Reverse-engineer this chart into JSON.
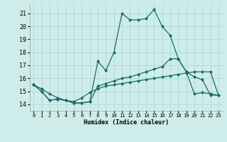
{
  "xlabel": "Humidex (Indice chaleur)",
  "bg_color": "#ceecea",
  "grid_color": "#aed8d4",
  "line_color": "#1a6b6b",
  "xlim": [
    -0.5,
    23.5
  ],
  "ylim": [
    13.5,
    21.7
  ],
  "yticks": [
    14,
    15,
    16,
    17,
    18,
    19,
    20,
    21
  ],
  "xticks": [
    0,
    1,
    2,
    3,
    4,
    5,
    6,
    7,
    8,
    9,
    10,
    11,
    12,
    13,
    14,
    15,
    16,
    17,
    18,
    19,
    20,
    21,
    22,
    23
  ],
  "series1_x": [
    0,
    1,
    2,
    3,
    4,
    5,
    6,
    7,
    8,
    9,
    10,
    11,
    12,
    13,
    14,
    15,
    16,
    17,
    18,
    19,
    20,
    21,
    22,
    23
  ],
  "series1_y": [
    15.5,
    15.0,
    14.3,
    14.4,
    14.3,
    14.1,
    14.1,
    14.2,
    17.3,
    16.6,
    18.0,
    21.0,
    20.5,
    20.5,
    20.6,
    21.3,
    20.0,
    19.3,
    17.5,
    16.5,
    16.1,
    15.9,
    14.7,
    14.7
  ],
  "series2_x": [
    0,
    1,
    2,
    3,
    4,
    5,
    6,
    7,
    8,
    9,
    10,
    11,
    12,
    13,
    14,
    15,
    16,
    17,
    18,
    19,
    20,
    21,
    22,
    23
  ],
  "series2_y": [
    15.5,
    15.0,
    14.3,
    14.4,
    14.3,
    14.1,
    14.1,
    14.2,
    15.4,
    15.6,
    15.8,
    16.0,
    16.1,
    16.3,
    16.5,
    16.7,
    16.9,
    17.5,
    17.5,
    16.5,
    14.8,
    14.9,
    14.8,
    14.7
  ],
  "series3_x": [
    0,
    1,
    2,
    3,
    4,
    5,
    6,
    7,
    8,
    9,
    10,
    11,
    12,
    13,
    14,
    15,
    16,
    17,
    18,
    19,
    20,
    21,
    22,
    23
  ],
  "series3_y": [
    15.5,
    15.2,
    14.8,
    14.5,
    14.3,
    14.2,
    14.5,
    14.9,
    15.2,
    15.4,
    15.5,
    15.6,
    15.7,
    15.8,
    15.9,
    16.0,
    16.1,
    16.2,
    16.3,
    16.4,
    16.5,
    16.5,
    16.5,
    14.7
  ]
}
